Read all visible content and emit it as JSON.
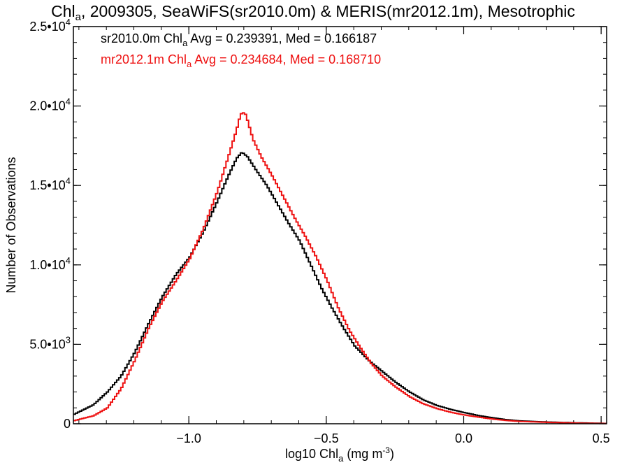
{
  "chart_data": {
    "type": "line",
    "title": {
      "prefix": "Chl",
      "sub": "a",
      "rest": ", 2009305, SeaWiFS(sr2010.0m) & MERIS(mr2012.1m), Mesotrophic"
    },
    "xlabel": {
      "prefix": "log10 Chl",
      "sub": "a",
      "rest": " (mg m",
      "sup": "-3",
      "end": ")"
    },
    "ylabel": "Number of Observations",
    "xlim": [
      -1.42,
      0.52
    ],
    "ylim": [
      0,
      25000
    ],
    "x_ticks": [
      {
        "value": -1.0,
        "label": "−1.0"
      },
      {
        "value": -0.5,
        "label": "−0.5"
      },
      {
        "value": 0.0,
        "label": "0.0"
      },
      {
        "value": 0.5,
        "label": "0.5"
      }
    ],
    "x_minor_tick_step": 0.1,
    "y_ticks": [
      {
        "value": 0,
        "mant": "0",
        "exp": ""
      },
      {
        "value": 5000,
        "mant": "5.0•10",
        "exp": "3"
      },
      {
        "value": 10000,
        "mant": "1.0•10",
        "exp": "4"
      },
      {
        "value": 15000,
        "mant": "1.5•10",
        "exp": "4"
      },
      {
        "value": 20000,
        "mant": "2.0•10",
        "exp": "4"
      },
      {
        "value": 25000,
        "mant": "2.5•10",
        "exp": "4"
      }
    ],
    "y_minor_tick_step": 1000,
    "grid": false,
    "legend_position": "top-left",
    "series": [
      {
        "name": "sr2010.0m",
        "color": "#000000",
        "legend": {
          "prefix": "sr2010.0m Chl",
          "sub": "a",
          "rest": " Avg = 0.239391, Med = 0.166187"
        },
        "points": [
          [
            -1.42,
            600
          ],
          [
            -1.35,
            1200
          ],
          [
            -1.3,
            2000
          ],
          [
            -1.25,
            3000
          ],
          [
            -1.2,
            4500
          ],
          [
            -1.15,
            6300
          ],
          [
            -1.1,
            8000
          ],
          [
            -1.05,
            9400
          ],
          [
            -1.0,
            10500
          ],
          [
            -0.95,
            12100
          ],
          [
            -0.9,
            14000
          ],
          [
            -0.86,
            15600
          ],
          [
            -0.83,
            16700
          ],
          [
            -0.81,
            17100
          ],
          [
            -0.79,
            16800
          ],
          [
            -0.76,
            16000
          ],
          [
            -0.72,
            15000
          ],
          [
            -0.68,
            13800
          ],
          [
            -0.64,
            12600
          ],
          [
            -0.6,
            11500
          ],
          [
            -0.56,
            10000
          ],
          [
            -0.52,
            8500
          ],
          [
            -0.48,
            7200
          ],
          [
            -0.44,
            6000
          ],
          [
            -0.4,
            4900
          ],
          [
            -0.35,
            4000
          ],
          [
            -0.3,
            3300
          ],
          [
            -0.25,
            2600
          ],
          [
            -0.2,
            2000
          ],
          [
            -0.15,
            1500
          ],
          [
            -0.1,
            1150
          ],
          [
            -0.05,
            900
          ],
          [
            0.0,
            700
          ],
          [
            0.05,
            520
          ],
          [
            0.1,
            380
          ],
          [
            0.15,
            260
          ],
          [
            0.2,
            180
          ],
          [
            0.3,
            110
          ],
          [
            0.4,
            60
          ],
          [
            0.52,
            20
          ]
        ]
      },
      {
        "name": "mr2012.1m",
        "color": "#ee1111",
        "legend": {
          "prefix": "mr2012.1m Chl",
          "sub": "a",
          "rest": " Avg = 0.234684, Med = 0.168710"
        },
        "points": [
          [
            -1.42,
            200
          ],
          [
            -1.35,
            500
          ],
          [
            -1.3,
            1000
          ],
          [
            -1.25,
            2200
          ],
          [
            -1.2,
            4000
          ],
          [
            -1.15,
            6000
          ],
          [
            -1.1,
            7700
          ],
          [
            -1.05,
            9000
          ],
          [
            -1.0,
            10400
          ],
          [
            -0.95,
            12300
          ],
          [
            -0.9,
            14600
          ],
          [
            -0.86,
            16800
          ],
          [
            -0.83,
            18500
          ],
          [
            -0.815,
            19500
          ],
          [
            -0.8,
            19600
          ],
          [
            -0.79,
            19100
          ],
          [
            -0.77,
            17900
          ],
          [
            -0.74,
            16800
          ],
          [
            -0.7,
            15600
          ],
          [
            -0.66,
            14300
          ],
          [
            -0.62,
            13000
          ],
          [
            -0.58,
            11800
          ],
          [
            -0.54,
            10500
          ],
          [
            -0.5,
            9000
          ],
          [
            -0.46,
            7300
          ],
          [
            -0.42,
            5900
          ],
          [
            -0.38,
            4800
          ],
          [
            -0.34,
            3800
          ],
          [
            -0.3,
            3000
          ],
          [
            -0.25,
            2300
          ],
          [
            -0.2,
            1700
          ],
          [
            -0.15,
            1250
          ],
          [
            -0.1,
            950
          ],
          [
            -0.05,
            720
          ],
          [
            0.0,
            550
          ],
          [
            0.05,
            420
          ],
          [
            0.1,
            300
          ],
          [
            0.15,
            210
          ],
          [
            0.2,
            150
          ],
          [
            0.3,
            90
          ],
          [
            0.4,
            45
          ],
          [
            0.52,
            15
          ]
        ]
      }
    ]
  }
}
